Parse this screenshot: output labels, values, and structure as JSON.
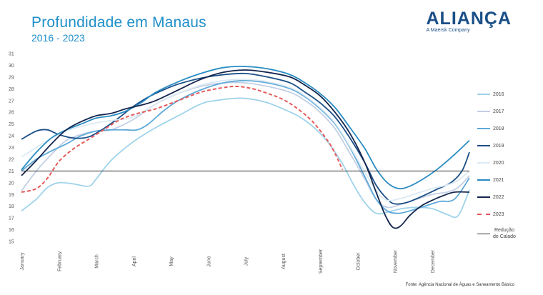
{
  "title": "Profundidade em Manaus",
  "subtitle": "2016 - 2023",
  "logo": {
    "name": "ALIANÇA",
    "tagline": "A Maersk Company"
  },
  "source": "Fonte: Agência Nacional de Águas e Saneamento Básico",
  "chart_data": {
    "type": "line",
    "title": "Profundidade em Manaus",
    "subtitle": "2016 - 2023",
    "x_ticks": [
      "January",
      "February",
      "March",
      "April",
      "May",
      "June",
      "July",
      "August",
      "September",
      "October",
      "November",
      "December"
    ],
    "ylim": [
      15,
      31
    ],
    "y_ticks": [
      15,
      16,
      17,
      18,
      19,
      20,
      21,
      22,
      23,
      24,
      25,
      26,
      27,
      28,
      29,
      30,
      31
    ],
    "grid": false,
    "legend_position": "right",
    "reference_line": {
      "name": "Redução de Calado",
      "value": 21,
      "color": "#333333"
    },
    "series": [
      {
        "name": "2016",
        "color": "#9fd3ea",
        "dashed": false,
        "points": [
          [
            0.0,
            17.6
          ],
          [
            0.4,
            18.6
          ],
          [
            0.7,
            19.6
          ],
          [
            1.0,
            20.0
          ],
          [
            1.4,
            19.9
          ],
          [
            1.8,
            19.7
          ],
          [
            2.0,
            20.3
          ],
          [
            2.4,
            21.9
          ],
          [
            3.0,
            23.5
          ],
          [
            3.6,
            24.7
          ],
          [
            4.2,
            25.7
          ],
          [
            4.8,
            26.7
          ],
          [
            5.2,
            27.0
          ],
          [
            5.8,
            27.2
          ],
          [
            6.2,
            27.1
          ],
          [
            6.6,
            26.8
          ],
          [
            7.0,
            26.3
          ],
          [
            7.4,
            25.7
          ],
          [
            7.8,
            24.8
          ],
          [
            8.2,
            23.5
          ],
          [
            8.6,
            21.6
          ],
          [
            8.9,
            19.8
          ],
          [
            9.2,
            18.3
          ],
          [
            9.5,
            17.4
          ],
          [
            9.8,
            17.5
          ],
          [
            10.2,
            17.8
          ],
          [
            10.6,
            17.9
          ],
          [
            11.0,
            17.8
          ],
          [
            11.4,
            17.3
          ],
          [
            11.7,
            17.2
          ],
          [
            12.0,
            19.4
          ]
        ]
      },
      {
        "name": "2017",
        "color": "#c3cfe4",
        "dashed": false,
        "points": [
          [
            0.0,
            19.3
          ],
          [
            0.4,
            21.0
          ],
          [
            0.8,
            22.4
          ],
          [
            1.2,
            23.6
          ],
          [
            1.6,
            24.1
          ],
          [
            2.0,
            24.4
          ],
          [
            2.4,
            24.5
          ],
          [
            3.0,
            25.4
          ],
          [
            3.6,
            26.7
          ],
          [
            4.2,
            27.6
          ],
          [
            4.8,
            28.2
          ],
          [
            5.4,
            28.5
          ],
          [
            6.0,
            28.5
          ],
          [
            6.6,
            28.2
          ],
          [
            7.2,
            27.7
          ],
          [
            7.6,
            27.0
          ],
          [
            8.0,
            26.0
          ],
          [
            8.4,
            24.6
          ],
          [
            8.8,
            22.5
          ],
          [
            9.2,
            20.3
          ],
          [
            9.5,
            18.6
          ],
          [
            9.8,
            17.9
          ],
          [
            10.2,
            18.2
          ],
          [
            10.6,
            18.6
          ],
          [
            11.0,
            19.0
          ],
          [
            11.4,
            19.2
          ],
          [
            11.7,
            19.6
          ],
          [
            12.0,
            20.6
          ]
        ]
      },
      {
        "name": "2018",
        "color": "#5ea9d8",
        "dashed": false,
        "points": [
          [
            0.0,
            21.0
          ],
          [
            0.4,
            22.0
          ],
          [
            0.8,
            22.7
          ],
          [
            1.2,
            23.3
          ],
          [
            1.6,
            24.0
          ],
          [
            2.0,
            24.4
          ],
          [
            2.4,
            24.5
          ],
          [
            2.8,
            24.5
          ],
          [
            3.1,
            24.5
          ],
          [
            3.4,
            25.0
          ],
          [
            3.8,
            26.1
          ],
          [
            4.2,
            27.0
          ],
          [
            4.8,
            27.9
          ],
          [
            5.4,
            28.5
          ],
          [
            6.0,
            28.7
          ],
          [
            6.6,
            28.5
          ],
          [
            7.2,
            28.0
          ],
          [
            7.6,
            27.3
          ],
          [
            8.0,
            26.3
          ],
          [
            8.4,
            25.0
          ],
          [
            8.8,
            23.0
          ],
          [
            9.2,
            20.5
          ],
          [
            9.5,
            18.6
          ],
          [
            9.8,
            17.6
          ],
          [
            10.1,
            17.4
          ],
          [
            10.4,
            17.6
          ],
          [
            10.8,
            18.0
          ],
          [
            11.2,
            18.4
          ],
          [
            11.6,
            18.6
          ],
          [
            12.0,
            20.4
          ]
        ]
      },
      {
        "name": "2019",
        "color": "#1b4f87",
        "dashed": false,
        "points": [
          [
            0.0,
            23.7
          ],
          [
            0.4,
            24.4
          ],
          [
            0.7,
            24.5
          ],
          [
            1.0,
            24.1
          ],
          [
            1.4,
            23.8
          ],
          [
            1.8,
            23.9
          ],
          [
            2.2,
            24.6
          ],
          [
            2.6,
            25.5
          ],
          [
            3.0,
            26.5
          ],
          [
            3.4,
            27.3
          ],
          [
            3.8,
            27.9
          ],
          [
            4.2,
            28.4
          ],
          [
            4.8,
            28.9
          ],
          [
            5.4,
            29.2
          ],
          [
            6.0,
            29.3
          ],
          [
            6.6,
            29.0
          ],
          [
            7.2,
            28.5
          ],
          [
            7.6,
            27.7
          ],
          [
            8.0,
            26.8
          ],
          [
            8.4,
            25.6
          ],
          [
            8.8,
            23.8
          ],
          [
            9.2,
            21.7
          ],
          [
            9.5,
            19.8
          ],
          [
            9.8,
            18.6
          ],
          [
            10.0,
            18.2
          ],
          [
            10.3,
            18.3
          ],
          [
            10.7,
            18.8
          ],
          [
            11.1,
            19.4
          ],
          [
            11.5,
            20.0
          ],
          [
            11.8,
            21.0
          ],
          [
            12.0,
            22.6
          ]
        ]
      },
      {
        "name": "2020",
        "color": "#dceaf4",
        "dashed": false,
        "points": [
          [
            0.0,
            22.2
          ],
          [
            0.4,
            23.0
          ],
          [
            0.8,
            23.8
          ],
          [
            1.2,
            24.4
          ],
          [
            1.6,
            24.8
          ],
          [
            2.0,
            25.1
          ],
          [
            2.4,
            25.3
          ],
          [
            3.0,
            25.6
          ],
          [
            3.6,
            26.7
          ],
          [
            4.2,
            27.6
          ],
          [
            4.8,
            28.3
          ],
          [
            5.4,
            28.7
          ],
          [
            6.0,
            28.8
          ],
          [
            6.6,
            28.6
          ],
          [
            7.2,
            28.1
          ],
          [
            7.6,
            27.4
          ],
          [
            8.0,
            26.4
          ],
          [
            8.4,
            25.1
          ],
          [
            8.8,
            23.1
          ],
          [
            9.2,
            20.9
          ],
          [
            9.5,
            19.3
          ],
          [
            9.8,
            18.5
          ],
          [
            10.2,
            18.7
          ],
          [
            10.6,
            19.1
          ],
          [
            11.0,
            19.5
          ],
          [
            11.4,
            19.8
          ],
          [
            11.7,
            20.2
          ],
          [
            12.0,
            21.0
          ]
        ]
      },
      {
        "name": "2021",
        "color": "#2a8cc2",
        "dashed": false,
        "points": [
          [
            0.0,
            21.1
          ],
          [
            0.4,
            22.6
          ],
          [
            0.8,
            23.8
          ],
          [
            1.2,
            24.5
          ],
          [
            1.6,
            25.0
          ],
          [
            2.0,
            25.5
          ],
          [
            2.4,
            25.7
          ],
          [
            2.8,
            26.1
          ],
          [
            3.2,
            26.8
          ],
          [
            3.6,
            27.7
          ],
          [
            4.2,
            28.6
          ],
          [
            4.8,
            29.3
          ],
          [
            5.4,
            29.8
          ],
          [
            6.0,
            29.9
          ],
          [
            6.6,
            29.7
          ],
          [
            7.2,
            29.2
          ],
          [
            7.6,
            28.5
          ],
          [
            8.0,
            27.6
          ],
          [
            8.4,
            26.4
          ],
          [
            8.8,
            24.7
          ],
          [
            9.2,
            22.9
          ],
          [
            9.5,
            21.2
          ],
          [
            9.8,
            20.0
          ],
          [
            10.1,
            19.5
          ],
          [
            10.4,
            19.7
          ],
          [
            10.8,
            20.4
          ],
          [
            11.2,
            21.3
          ],
          [
            11.6,
            22.4
          ],
          [
            12.0,
            23.6
          ]
        ]
      },
      {
        "name": "2022",
        "color": "#14254d",
        "dashed": false,
        "points": [
          [
            0.0,
            20.6
          ],
          [
            0.4,
            21.9
          ],
          [
            0.8,
            23.3
          ],
          [
            1.2,
            24.5
          ],
          [
            1.6,
            25.2
          ],
          [
            2.0,
            25.7
          ],
          [
            2.4,
            25.9
          ],
          [
            2.8,
            26.3
          ],
          [
            3.2,
            26.6
          ],
          [
            3.6,
            27.0
          ],
          [
            4.2,
            27.9
          ],
          [
            4.8,
            28.8
          ],
          [
            5.4,
            29.4
          ],
          [
            6.0,
            29.6
          ],
          [
            6.6,
            29.4
          ],
          [
            7.2,
            29.0
          ],
          [
            7.6,
            28.3
          ],
          [
            8.0,
            27.4
          ],
          [
            8.4,
            26.0
          ],
          [
            8.8,
            24.2
          ],
          [
            9.2,
            21.7
          ],
          [
            9.5,
            19.2
          ],
          [
            9.75,
            17.2
          ],
          [
            9.95,
            16.2
          ],
          [
            10.15,
            16.3
          ],
          [
            10.4,
            17.2
          ],
          [
            10.7,
            18.0
          ],
          [
            11.0,
            18.5
          ],
          [
            11.3,
            18.9
          ],
          [
            11.6,
            19.2
          ],
          [
            12.0,
            19.2
          ]
        ]
      },
      {
        "name": "2023",
        "color": "#e65a5a",
        "dashed": true,
        "points": [
          [
            0.0,
            19.2
          ],
          [
            0.4,
            19.5
          ],
          [
            0.7,
            20.4
          ],
          [
            1.0,
            21.8
          ],
          [
            1.4,
            22.9
          ],
          [
            1.8,
            23.7
          ],
          [
            2.2,
            24.5
          ],
          [
            2.6,
            25.3
          ],
          [
            3.0,
            25.8
          ],
          [
            3.6,
            26.3
          ],
          [
            4.2,
            27.0
          ],
          [
            4.8,
            27.7
          ],
          [
            5.4,
            28.1
          ],
          [
            5.8,
            28.2
          ],
          [
            6.2,
            28.0
          ],
          [
            6.6,
            27.6
          ],
          [
            7.0,
            27.1
          ],
          [
            7.4,
            26.3
          ],
          [
            7.8,
            25.2
          ],
          [
            8.2,
            23.6
          ],
          [
            8.4,
            22.5
          ],
          [
            8.6,
            21.1
          ]
        ]
      }
    ]
  }
}
